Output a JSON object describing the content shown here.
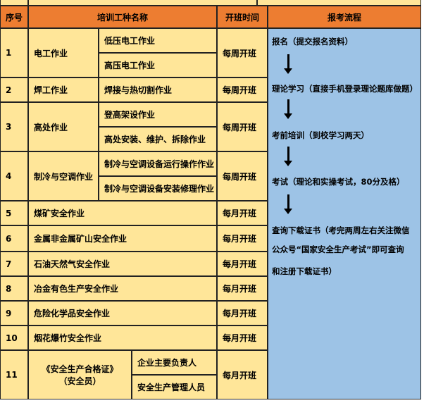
{
  "header": {
    "no": "序号",
    "name": "培训工种名称",
    "time": "开班时间",
    "process": "报考流程"
  },
  "rows": [
    {
      "no": "1",
      "name": "电工作业",
      "subs": [
        "低压电工作业",
        "高压电工作业"
      ],
      "time": "每周开班"
    },
    {
      "no": "2",
      "name": "焊工作业",
      "subs": [
        "焊接与热切割作业"
      ],
      "time": "每周开班"
    },
    {
      "no": "3",
      "name": "高处作业",
      "subs": [
        "登高架设作业",
        "高处安装、维护、拆除作业"
      ],
      "time": "每周开班"
    },
    {
      "no": "4",
      "name": "制冷与空调作业",
      "subs": [
        "制冷与空调设备运行操作作业",
        "制冷与空调设备安装修理作业"
      ],
      "time": "每周开班"
    },
    {
      "no": "5",
      "name": "煤矿安全作业",
      "time": "每月开班"
    },
    {
      "no": "6",
      "name": "金属非金属矿山安全作业",
      "time": "每月开班"
    },
    {
      "no": "7",
      "name": "石油天然气安全作业",
      "time": "每月开班"
    },
    {
      "no": "8",
      "name": "冶金有色生产安全作业",
      "time": "每月开班"
    },
    {
      "no": "9",
      "name": "危险化学品安全作业",
      "time": "每月开班"
    },
    {
      "no": "10",
      "name": "烟花爆竹安全作业",
      "time": "每月开班"
    },
    {
      "no": "11",
      "name": "《安全生产合格证》",
      "name2": "（安全员）",
      "subs": [
        "企业主要负责人",
        "安全生产管理人员"
      ],
      "time": "每月开班"
    }
  ],
  "process": {
    "steps": [
      "报名（提交报名资料）",
      "理论学习（直接手机登录理论题库做题）",
      "考前培训（到校学习两天）",
      "考试（理论和实操考试，80分及格）"
    ],
    "final": [
      "查询下载证书（考完两周左右关注微信",
      "公众号“国家安全生产考试”即可查询",
      "和注册下载证书）"
    ]
  },
  "colors": {
    "header": "#ED7D31",
    "cell": "#FFE699",
    "process": "#9DC3E6"
  }
}
